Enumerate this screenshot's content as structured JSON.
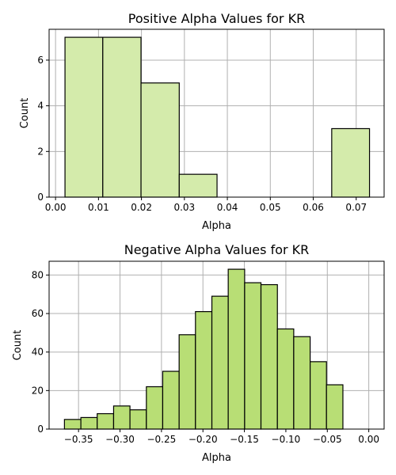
{
  "chart_data": [
    {
      "type": "bar",
      "title": "Positive Alpha Values for KR",
      "xlabel": "Alpha",
      "ylabel": "Count",
      "xlim": [
        -0.0015,
        0.0765
      ],
      "ylim": [
        0,
        7.35
      ],
      "xticks": [
        {
          "value": 0.0,
          "label": "0.00"
        },
        {
          "value": 0.01,
          "label": "0.01"
        },
        {
          "value": 0.02,
          "label": "0.02"
        },
        {
          "value": 0.03,
          "label": "0.03"
        },
        {
          "value": 0.04,
          "label": "0.04"
        },
        {
          "value": 0.05,
          "label": "0.05"
        },
        {
          "value": 0.06,
          "label": "0.06"
        },
        {
          "value": 0.07,
          "label": "0.07"
        }
      ],
      "yticks": [
        {
          "value": 0,
          "label": "0"
        },
        {
          "value": 2,
          "label": "2"
        },
        {
          "value": 4,
          "label": "4"
        },
        {
          "value": 6,
          "label": "6"
        }
      ],
      "bins": [
        {
          "x0": 0.0022,
          "x1": 0.011,
          "count": 7
        },
        {
          "x0": 0.011,
          "x1": 0.0199,
          "count": 7
        },
        {
          "x0": 0.0199,
          "x1": 0.0288,
          "count": 5
        },
        {
          "x0": 0.0288,
          "x1": 0.0376,
          "count": 1
        },
        {
          "x0": 0.0376,
          "x1": 0.0465,
          "count": 0
        },
        {
          "x0": 0.0465,
          "x1": 0.0554,
          "count": 0
        },
        {
          "x0": 0.0554,
          "x1": 0.0643,
          "count": 0
        },
        {
          "x0": 0.0643,
          "x1": 0.0731,
          "count": 3
        }
      ],
      "bar_color": "#d4ebab",
      "edge_color": "#000000",
      "grid": true
    },
    {
      "type": "bar",
      "title": "Negative Alpha Values for KR",
      "xlabel": "Alpha",
      "ylabel": "Count",
      "xlim": [
        -0.3855,
        0.0185
      ],
      "ylim": [
        0,
        87.15
      ],
      "xticks": [
        {
          "value": -0.35,
          "label": "−0.35"
        },
        {
          "value": -0.3,
          "label": "−0.30"
        },
        {
          "value": -0.25,
          "label": "−0.25"
        },
        {
          "value": -0.2,
          "label": "−0.20"
        },
        {
          "value": -0.15,
          "label": "−0.15"
        },
        {
          "value": -0.1,
          "label": "−0.10"
        },
        {
          "value": -0.05,
          "label": "−0.05"
        },
        {
          "value": 0.0,
          "label": "0.00"
        }
      ],
      "yticks": [
        {
          "value": 0,
          "label": "0"
        },
        {
          "value": 20,
          "label": "20"
        },
        {
          "value": 40,
          "label": "40"
        },
        {
          "value": 60,
          "label": "60"
        },
        {
          "value": 80,
          "label": "80"
        }
      ],
      "bins": [
        {
          "x0": -0.367,
          "x1": -0.3472,
          "count": 5
        },
        {
          "x0": -0.3472,
          "x1": -0.3275,
          "count": 6
        },
        {
          "x0": -0.3275,
          "x1": -0.3077,
          "count": 8
        },
        {
          "x0": -0.3077,
          "x1": -0.288,
          "count": 12
        },
        {
          "x0": -0.288,
          "x1": -0.2682,
          "count": 10
        },
        {
          "x0": -0.2682,
          "x1": -0.2485,
          "count": 22
        },
        {
          "x0": -0.2485,
          "x1": -0.2287,
          "count": 30
        },
        {
          "x0": -0.2287,
          "x1": -0.209,
          "count": 49
        },
        {
          "x0": -0.209,
          "x1": -0.1892,
          "count": 61
        },
        {
          "x0": -0.1892,
          "x1": -0.1695,
          "count": 69
        },
        {
          "x0": -0.1695,
          "x1": -0.1497,
          "count": 83
        },
        {
          "x0": -0.1497,
          "x1": -0.13,
          "count": 76
        },
        {
          "x0": -0.13,
          "x1": -0.1102,
          "count": 75
        },
        {
          "x0": -0.1102,
          "x1": -0.0905,
          "count": 52
        },
        {
          "x0": -0.0905,
          "x1": -0.0707,
          "count": 48
        },
        {
          "x0": -0.0707,
          "x1": -0.051,
          "count": 35
        },
        {
          "x0": -0.051,
          "x1": -0.0312,
          "count": 23
        }
      ],
      "bar_color": "#b8de75",
      "edge_color": "#000000",
      "grid": true
    }
  ]
}
